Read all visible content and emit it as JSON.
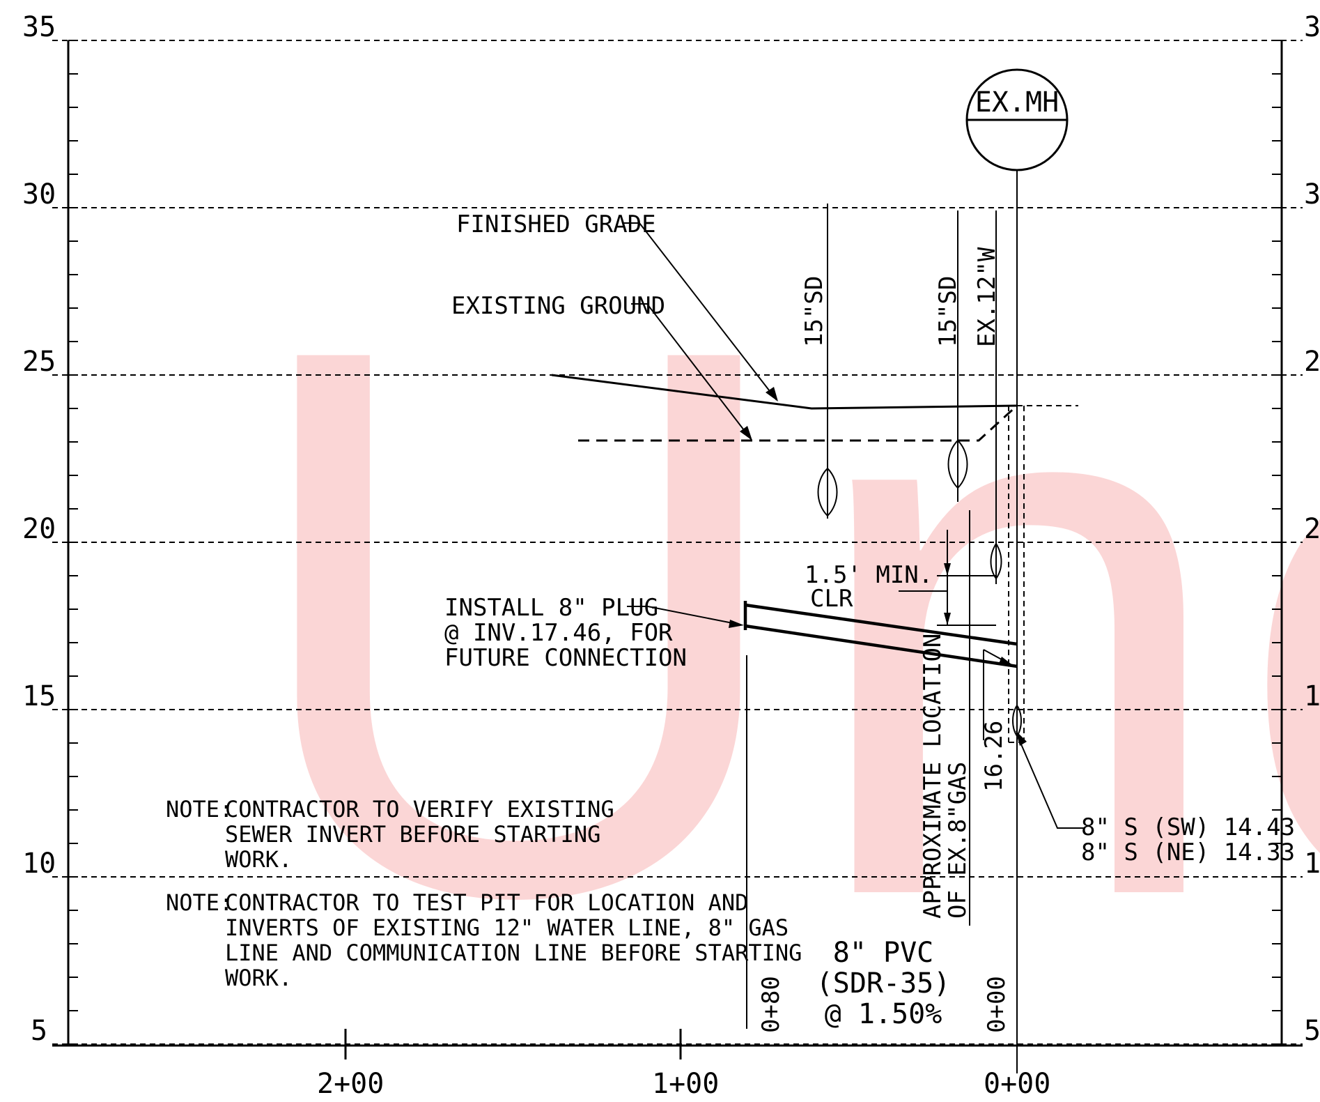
{
  "watermark": {
    "text": "Unc",
    "color": "#f79a9a"
  },
  "axes": {
    "elevations": [
      "35",
      "30",
      "25",
      "20",
      "15",
      "10",
      "5"
    ],
    "right_elevations": [
      "3",
      "3",
      "2",
      "2",
      "1",
      "1",
      "5"
    ],
    "stations": [
      "2+00",
      "1+00",
      "0+00"
    ]
  },
  "manhole": {
    "label": "EX.MH"
  },
  "labels": {
    "finished_grade": "FINISHED GRADE",
    "existing_ground": "EXISTING GROUND",
    "sd1": "15\"SD",
    "sd2": "15\"SD",
    "water": "EX.12\"W",
    "clearance_line1": "1.5' MIN.",
    "clearance_line2": "CLR",
    "plug_line1": "INSTALL 8\" PLUG",
    "plug_line2": "@ INV.17.46, FOR",
    "plug_line3": "FUTURE CONNECTION",
    "gas_line1": "APPROXIMATE LOCATION",
    "gas_line2": "OF EX.8\"GAS",
    "invert_dim": "16.26",
    "inv_sw": "8\" S (SW) 14.43",
    "inv_ne": "8\" S (NE) 14.33",
    "pipe_line1": "8\" PVC",
    "pipe_line2": "(SDR-35)",
    "pipe_line3": "@ 1.50%",
    "sta_080": "0+80",
    "sta_000": "0+00"
  },
  "notes": [
    {
      "prefix": "NOTE:",
      "lines": [
        "CONTRACTOR TO VERIFY EXISTING",
        "SEWER INVERT BEFORE STARTING",
        "WORK."
      ]
    },
    {
      "prefix": "NOTE:",
      "lines": [
        "CONTRACTOR TO TEST PIT FOR LOCATION AND",
        "INVERTS OF EXISTING 12\" WATER LINE, 8\" GAS",
        "LINE AND COMMUNICATION LINE BEFORE STARTING",
        "WORK."
      ]
    }
  ]
}
